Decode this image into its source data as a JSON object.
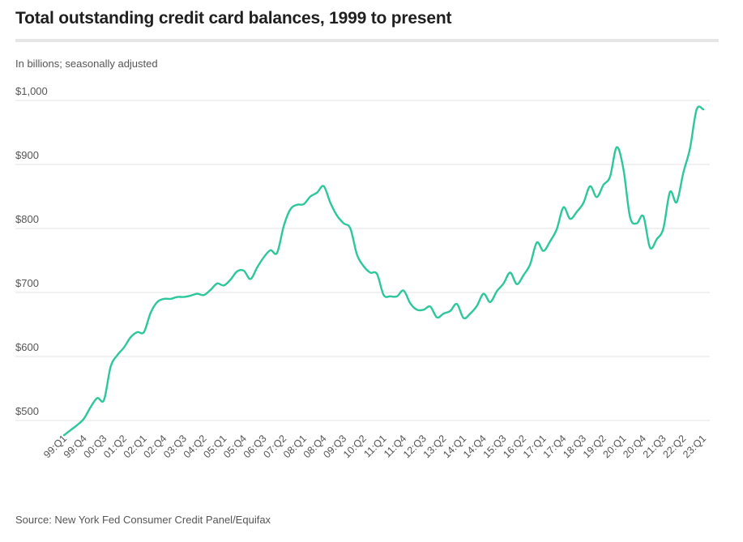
{
  "chart_data": {
    "type": "line",
    "title": "Total outstanding credit card balances, 1999 to present",
    "subtitle": "In billions; seasonally adjusted",
    "source": "Source: New York Fed Consumer Credit Panel/Equifax",
    "xlabel": "",
    "ylabel": "",
    "ylim": [
      450,
      1000
    ],
    "y_ticks": [
      500,
      600,
      700,
      800,
      900,
      1000
    ],
    "y_tick_labels": [
      "$500",
      "$600",
      "$700",
      "$800",
      "$900",
      "$1,000"
    ],
    "grid": true,
    "legend": "none",
    "line_color": "#2cc79a",
    "x_tick_labels": [
      "99:Q1",
      "99:Q4",
      "00:Q3",
      "01:Q2",
      "02:Q1",
      "02:Q4",
      "03:Q3",
      "04:Q2",
      "05:Q1",
      "05:Q4",
      "06:Q3",
      "07:Q2",
      "08:Q1",
      "08:Q4",
      "09:Q3",
      "10:Q2",
      "11:Q1",
      "11:Q4",
      "12:Q3",
      "13:Q2",
      "14:Q1",
      "14:Q4",
      "15:Q3",
      "16:Q2",
      "17:Q1",
      "17:Q4",
      "18:Q3",
      "19:Q2",
      "20:Q1",
      "20:Q4",
      "21:Q3",
      "22:Q2",
      "23:Q1"
    ],
    "x": [
      "99:Q1",
      "99:Q2",
      "99:Q3",
      "99:Q4",
      "00:Q1",
      "00:Q2",
      "00:Q3",
      "00:Q4",
      "01:Q1",
      "01:Q2",
      "01:Q3",
      "01:Q4",
      "02:Q1",
      "02:Q2",
      "02:Q3",
      "02:Q4",
      "03:Q1",
      "03:Q2",
      "03:Q3",
      "03:Q4",
      "04:Q1",
      "04:Q2",
      "04:Q3",
      "04:Q4",
      "05:Q1",
      "05:Q2",
      "05:Q3",
      "05:Q4",
      "06:Q1",
      "06:Q2",
      "06:Q3",
      "06:Q4",
      "07:Q1",
      "07:Q2",
      "07:Q3",
      "07:Q4",
      "08:Q1",
      "08:Q2",
      "08:Q3",
      "08:Q4",
      "09:Q1",
      "09:Q2",
      "09:Q3",
      "09:Q4",
      "10:Q1",
      "10:Q2",
      "10:Q3",
      "10:Q4",
      "11:Q1",
      "11:Q2",
      "11:Q3",
      "11:Q4",
      "12:Q1",
      "12:Q2",
      "12:Q3",
      "12:Q4",
      "13:Q1",
      "13:Q2",
      "13:Q3",
      "13:Q4",
      "14:Q1",
      "14:Q2",
      "14:Q3",
      "14:Q4",
      "15:Q1",
      "15:Q2",
      "15:Q3",
      "15:Q4",
      "16:Q1",
      "16:Q2",
      "16:Q3",
      "16:Q4",
      "17:Q1",
      "17:Q2",
      "17:Q3",
      "17:Q4",
      "18:Q1",
      "18:Q2",
      "18:Q3",
      "18:Q4",
      "19:Q1",
      "19:Q2",
      "19:Q3",
      "19:Q4",
      "20:Q1",
      "20:Q2",
      "20:Q3",
      "20:Q4",
      "21:Q1",
      "21:Q2",
      "21:Q3",
      "21:Q4",
      "22:Q1",
      "22:Q2",
      "22:Q3",
      "22:Q4",
      "23:Q1"
    ],
    "series": [
      {
        "values": [
          477,
          485,
          493,
          503,
          521,
          535,
          532,
          584,
          602,
          614,
          630,
          638,
          638,
          668,
          685,
          690,
          690,
          693,
          693,
          695,
          698,
          696,
          704,
          714,
          711,
          720,
          733,
          734,
          721,
          739,
          755,
          766,
          762,
          804,
          830,
          837,
          838,
          850,
          856,
          866,
          840,
          820,
          808,
          800,
          759,
          741,
          731,
          729,
          696,
          694,
          694,
          703,
          683,
          673,
          673,
          678,
          661,
          667,
          671,
          682,
          660,
          667,
          679,
          698,
          685,
          702,
          714,
          731,
          713,
          727,
          744,
          778,
          765,
          780,
          799,
          833,
          815,
          826,
          840,
          866,
          849,
          868,
          881,
          927,
          893,
          818,
          808,
          819,
          770,
          783,
          800,
          857,
          841,
          887,
          925,
          986,
          986
        ]
      }
    ]
  }
}
